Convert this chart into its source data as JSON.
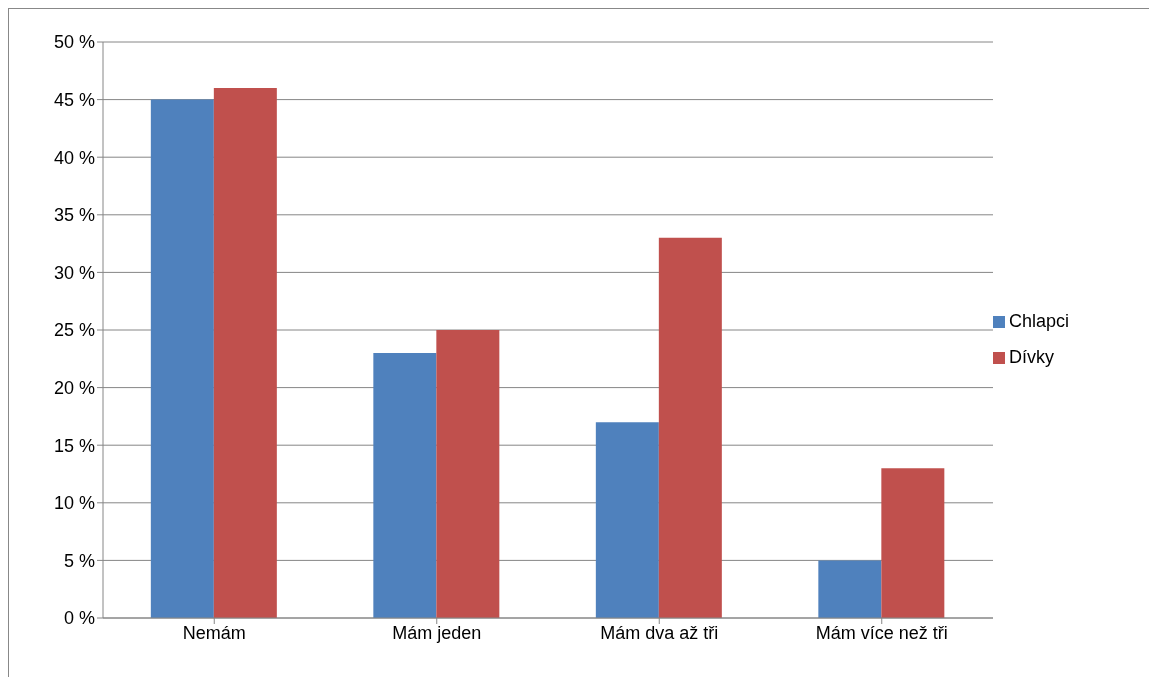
{
  "chart_data": {
    "type": "bar",
    "categories": [
      "Nemám",
      "Mám jeden",
      "Mám dva až tři",
      "Mám více než tři"
    ],
    "series": [
      {
        "name": "Chlapci",
        "color": "#4f81bd",
        "values": [
          45,
          23,
          17,
          5
        ]
      },
      {
        "name": "Dívky",
        "color": "#c0504d",
        "values": [
          46,
          25,
          33,
          13
        ]
      }
    ],
    "ylim": [
      0,
      50
    ],
    "yticks": [
      {
        "value": 0,
        "label": "0 %"
      },
      {
        "value": 5,
        "label": "5 %"
      },
      {
        "value": 10,
        "label": "10 %"
      },
      {
        "value": 15,
        "label": "15 %"
      },
      {
        "value": 20,
        "label": "20 %"
      },
      {
        "value": 25,
        "label": "25 %"
      },
      {
        "value": 30,
        "label": "30 %"
      },
      {
        "value": 35,
        "label": "35 %"
      },
      {
        "value": 40,
        "label": "40 %"
      },
      {
        "value": 45,
        "label": "45 %"
      },
      {
        "value": 50,
        "label": "50 %"
      }
    ],
    "grid": "y",
    "legend": "right"
  }
}
